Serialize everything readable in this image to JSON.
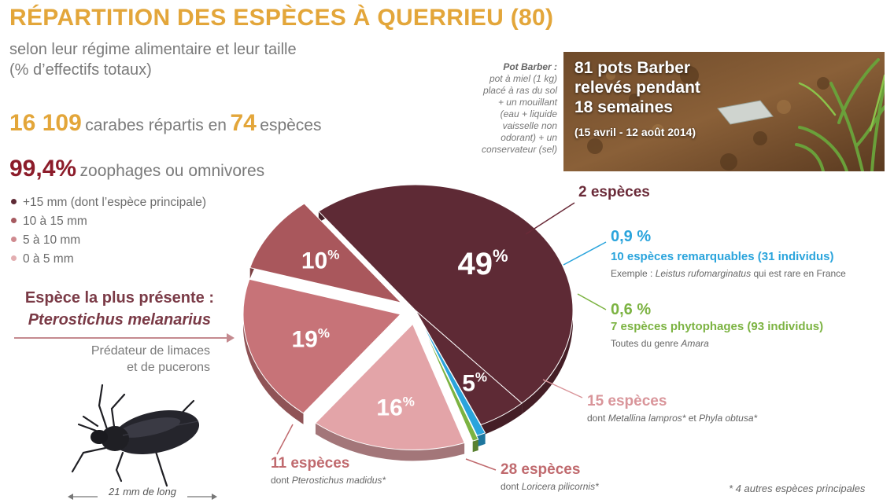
{
  "title": "RÉPARTITION DES ESPÈCES À QUERRIEU (80)",
  "subtitle_line1": "selon leur régime alimentaire et leur taille",
  "subtitle_line2": "(% d’effectifs totaux)",
  "stats": {
    "carabes_count": "16 109",
    "carabes_text": "carabes répartis en",
    "species_count": "74",
    "species_text": "espèces",
    "zoophage_pct": "99,4%",
    "zoophage_text": "zoophages ou omnivores"
  },
  "legend": [
    {
      "label": "+15 mm (dont l’espèce principale)",
      "color": "#5e2a35"
    },
    {
      "label": "10 à 15 mm",
      "color": "#a65a60"
    },
    {
      "label": "5 à 10 mm",
      "color": "#cf8a8f"
    },
    {
      "label": "0 à 5 mm",
      "color": "#e3aeb1"
    }
  ],
  "species_heading": "Espèce la plus présente :",
  "species_name": "Pterostichus melanarius",
  "predator_line1": "Prédateur de limaces",
  "predator_line2": "et de pucerons",
  "beetle_length": "21 mm de long",
  "pot_barber": {
    "heading": "Pot Barber :",
    "lines": [
      "pot à miel (1 kg)",
      "placé à ras du sol",
      "+ un mouillant",
      "(eau + liquide",
      "vaisselle non",
      "odorant) + un",
      "conservateur (sel)"
    ]
  },
  "photo": {
    "line1": "81 pots Barber",
    "line2": "relevés pendant",
    "line3": "18 semaines",
    "dates": "(15 avril - 12 août 2014)"
  },
  "annotations": {
    "two_species": "2 espèces",
    "blue_pct": "0,9 %",
    "blue_desc": "10 espèces remarquables (31 individus)",
    "blue_example_prefix": "Exemple : ",
    "blue_example_species": "Leistus rufomarginatus",
    "blue_example_suffix": " qui est rare en France",
    "green_pct": "0,6 %",
    "green_desc": "7 espèces phytophages (93 individus)",
    "green_example_prefix": "Toutes du genre ",
    "green_example_genus": "Amara",
    "fifteen_species": "15 espèces",
    "fifteen_dont_prefix": "dont ",
    "fifteen_dont_species1": "Metallina lampros*",
    "fifteen_dont_mid": " et ",
    "fifteen_dont_species2": "Phyla obtusa*",
    "eleven_species": "11 espèces",
    "eleven_dont_prefix": "dont ",
    "eleven_dont_species": "Pterostichus madidus*",
    "twentyeight_species": "28 espèces",
    "twentyeight_dont_prefix": "dont ",
    "twentyeight_dont_species": "Loricera pilicornis*"
  },
  "footnote": "* 4 autres espèces principales",
  "chart_data": {
    "type": "pie",
    "title": "",
    "slices": [
      {
        "label": "49%",
        "value": 49,
        "color": "#5e2a35",
        "exploded": false
      },
      {
        "label": "5%",
        "value": 5,
        "color": "#5e2a35",
        "exploded": false
      },
      {
        "label": "0,9 %",
        "value": 0.9,
        "color": "#2aa4dc",
        "exploded": true
      },
      {
        "label": "0,6 %",
        "value": 0.6,
        "color": "#7cb342",
        "exploded": true
      },
      {
        "label": "16%",
        "value": 16,
        "color": "#e3a4a8",
        "exploded": true
      },
      {
        "label": "19%",
        "value": 19,
        "color": "#c77378",
        "exploded": true
      },
      {
        "label": "10%",
        "value": 10,
        "color": "#a9575c",
        "exploded": true
      }
    ]
  }
}
